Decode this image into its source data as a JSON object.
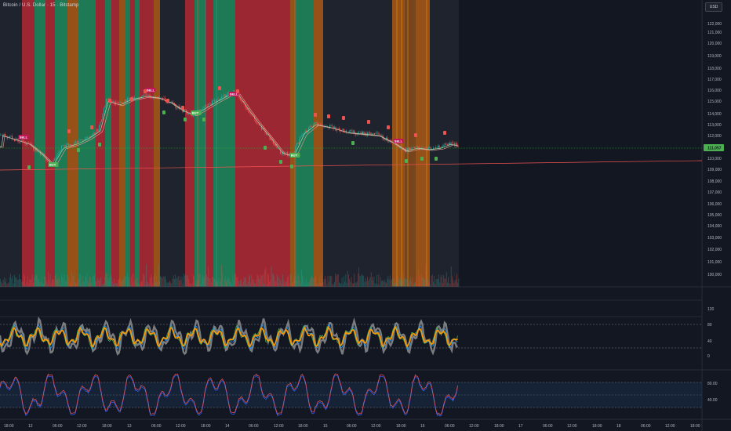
{
  "header": {
    "title": "Bitcoin / U.S. Dollar · 15 · Bitstamp"
  },
  "currency_button": "USD",
  "price_axis": {
    "labels": [
      "122,000",
      "121,000",
      "120,000",
      "119,000",
      "118,000",
      "117,000",
      "116,000",
      "115,000",
      "114,000",
      "113,000",
      "112,000",
      "110,000",
      "109,000",
      "108,000",
      "107,000",
      "106,000",
      "105,000",
      "104,000",
      "103,000",
      "102,000",
      "101,000",
      "100,000"
    ],
    "last_price": "111,057"
  },
  "oscillator1_axis": {
    "labels": [
      "120",
      "80",
      "40",
      "0"
    ]
  },
  "oscillator2_axis": {
    "labels": [
      "80.00",
      "40.00"
    ]
  },
  "time_axis": {
    "labels": [
      "18:00",
      "12",
      "06:00",
      "12:00",
      "18:00",
      "13",
      "06:00",
      "12:00",
      "18:00",
      "14",
      "06:00",
      "12:00",
      "18:00",
      "15",
      "06:00",
      "12:00",
      "18:00",
      "16",
      "06:00",
      "12:00",
      "18:00",
      "17",
      "06:00",
      "12:00",
      "18:00",
      "18",
      "06:00",
      "12:00",
      "18:00"
    ]
  },
  "signals": {
    "buy_label": "BUY",
    "sell_label": "SELL"
  },
  "colors": {
    "bull": "#26a69a",
    "bear": "#ef5350",
    "accent": "#4caf50",
    "orange": "#ff9800",
    "blue": "#2962ff"
  }
}
